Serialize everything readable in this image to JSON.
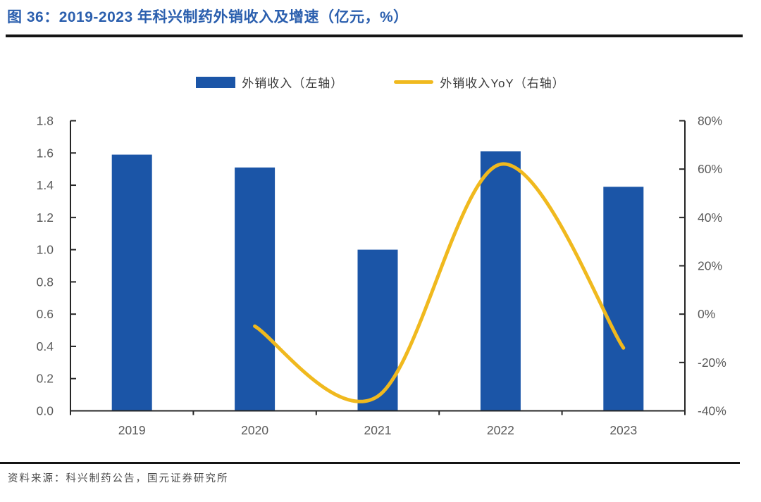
{
  "header": {
    "title": "图 36：2019-2023 年科兴制药外销收入及增速（亿元，%）"
  },
  "footer": {
    "source": "资料来源：科兴制药公告，国元证券研究所"
  },
  "colors": {
    "title_text": "#2B5FAE",
    "title_rule": "#141414",
    "source_rule": "#141414",
    "axis_line": "#262626",
    "axis_text": "#595959",
    "bar_fill": "#1B55A7",
    "line_stroke": "#F0B91E"
  },
  "chart_data": {
    "type": "bar",
    "subtype": "combo-bar-line",
    "title": "2019-2023 年科兴制药外销收入及增速（亿元，%）",
    "categories": [
      "2019",
      "2020",
      "2021",
      "2022",
      "2023"
    ],
    "series": [
      {
        "name": "外销收入（左轴）",
        "type": "bar",
        "axis": "left",
        "color": "#1B55A7",
        "values": [
          1.59,
          1.51,
          1.0,
          1.61,
          1.39
        ]
      },
      {
        "name": "外销收入YoY（右轴）",
        "type": "line",
        "axis": "right",
        "color": "#F0B91E",
        "values": [
          null,
          -5,
          -34,
          62,
          -14
        ]
      }
    ],
    "left_axis": {
      "min": 0,
      "max": 1.8,
      "step": 0.2,
      "tick_labels": [
        "1.8",
        "1.6",
        "1.4",
        "1.2",
        "1.0",
        "0.8",
        "0.6",
        "0.4",
        "0.2",
        "0.0"
      ]
    },
    "right_axis": {
      "min": -40,
      "max": 80,
      "step": 20,
      "tick_labels": [
        "80%",
        "60%",
        "40%",
        "20%",
        "0%",
        "-20%",
        "-40%"
      ]
    },
    "grid": false,
    "legend_position": "top-center"
  }
}
